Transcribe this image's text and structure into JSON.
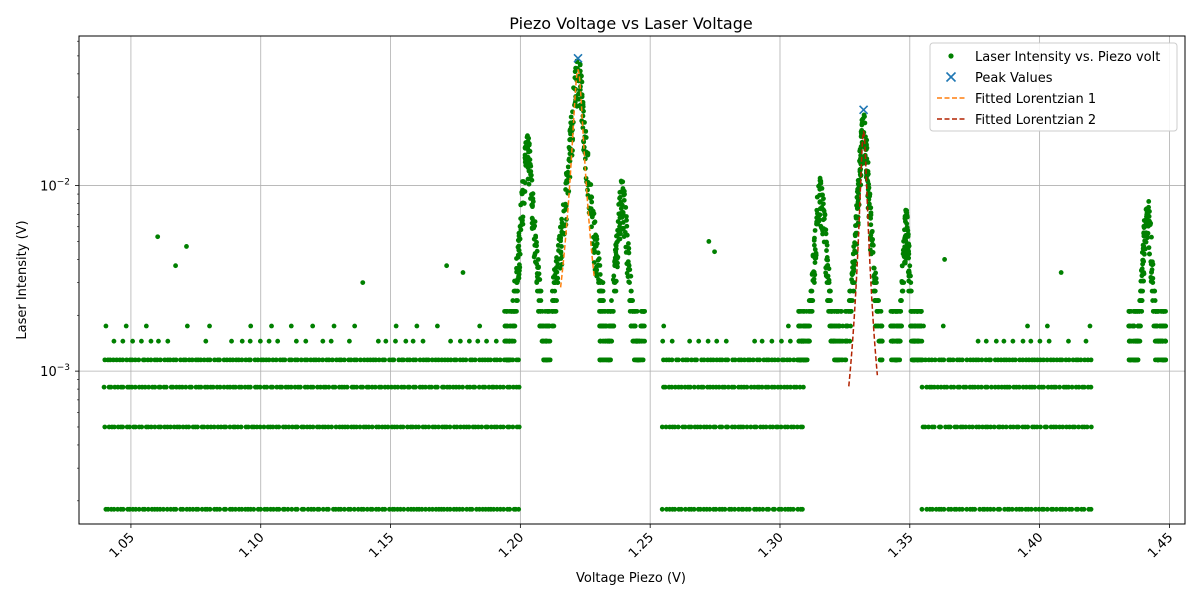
{
  "chart_data": {
    "type": "scatter",
    "title": "Piezo Voltage vs Laser Voltage",
    "xlabel": "Voltage Piezo (V)",
    "ylabel": "Laser Intensity (V)",
    "xlim": [
      1.03,
      1.456
    ],
    "ylim": [
      0.00015,
      0.064
    ],
    "yscale": "log",
    "grid": true,
    "legend_position": "top-right",
    "x_ticks": [
      "1.05",
      "1.10",
      "1.15",
      "1.20",
      "1.25",
      "1.30",
      "1.35",
      "1.40",
      "1.45"
    ],
    "x_tick_values": [
      1.05,
      1.1,
      1.15,
      1.2,
      1.25,
      1.3,
      1.35,
      1.4,
      1.45
    ],
    "y_ticks": [
      {
        "value": 0.001,
        "base": "10",
        "exp": "−3"
      },
      {
        "value": 0.01,
        "base": "10",
        "exp": "−2"
      }
    ],
    "series": [
      {
        "name": "Laser Intensity vs. Piezo volt",
        "marker": "dot",
        "color": "#008000",
        "levels": [
          0.00018,
          0.0005,
          0.00082,
          0.00115,
          0.00145,
          0.00175,
          0.0021,
          0.0024,
          0.0027,
          0.003
        ],
        "baseline_ranges": [
          {
            "x": [
              1.04,
              1.2
            ],
            "levels": [
              0.00018,
              0.0005,
              0.00082,
              0.00115,
              0.00145,
              0.00175
            ]
          },
          {
            "x": [
              1.255,
              1.31
            ],
            "levels": [
              0.00018,
              0.0005,
              0.00082,
              0.00115,
              0.00145,
              0.00175
            ]
          },
          {
            "x": [
              1.355,
              1.42
            ],
            "levels": [
              0.00018,
              0.0005,
              0.00082,
              0.00115,
              0.00145,
              0.00175
            ]
          }
        ],
        "peaks": [
          {
            "center": 1.2027,
            "width": 0.0022,
            "height": 0.018
          },
          {
            "center": 1.2222,
            "width": 0.0025,
            "height": 0.048
          },
          {
            "center": 1.2392,
            "width": 0.0022,
            "height": 0.0105
          },
          {
            "center": 1.3156,
            "width": 0.0022,
            "height": 0.011
          },
          {
            "center": 1.3322,
            "width": 0.0018,
            "height": 0.025
          },
          {
            "center": 1.3486,
            "width": 0.0015,
            "height": 0.0072
          },
          {
            "center": 1.4415,
            "width": 0.0018,
            "height": 0.009
          }
        ],
        "outliers": [
          {
            "x": 1.0603,
            "y": 0.0053
          },
          {
            "x": 1.0672,
            "y": 0.0037
          },
          {
            "x": 1.0714,
            "y": 0.0047
          },
          {
            "x": 1.1393,
            "y": 0.003
          },
          {
            "x": 1.1716,
            "y": 0.0037
          },
          {
            "x": 1.1779,
            "y": 0.0034
          },
          {
            "x": 1.2726,
            "y": 0.005
          },
          {
            "x": 1.2748,
            "y": 0.0044
          },
          {
            "x": 1.3634,
            "y": 0.004
          },
          {
            "x": 1.4083,
            "y": 0.0034
          }
        ]
      },
      {
        "name": "Peak Values",
        "marker": "x",
        "color": "#1f77b4",
        "points": [
          {
            "x": 1.2222,
            "y": 0.0485
          },
          {
            "x": 1.3322,
            "y": 0.0256
          }
        ]
      },
      {
        "name": "Fitted Lorentzian 1",
        "style": "dashed",
        "color": "#ff7f0e",
        "center": 1.2222,
        "gamma": 0.0018,
        "amplitude": 0.042,
        "x_range": [
          1.2155,
          1.2285
        ]
      },
      {
        "name": "Fitted Lorentzian 2",
        "style": "dashed",
        "color": "#b22200",
        "center": 1.3322,
        "gamma": 0.0012,
        "amplitude": 0.0195,
        "x_range": [
          1.3265,
          1.3375
        ]
      }
    ]
  }
}
